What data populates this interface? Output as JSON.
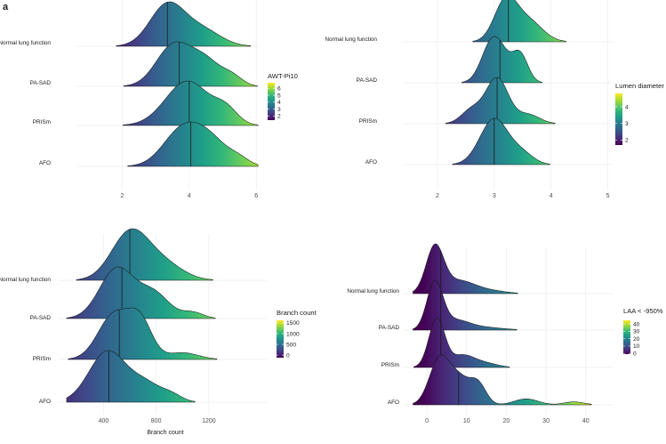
{
  "panel_label": "a",
  "palette": [
    "#440154",
    "#482878",
    "#3e4a89",
    "#31688e",
    "#26828e",
    "#1f9e89",
    "#35b779",
    "#6ece58",
    "#b5de2b",
    "#fde725"
  ],
  "chart_data": [
    {
      "type": "ridgeline",
      "id": "awt",
      "legend_title": "AWT-Pi10",
      "legend_range": [
        1.4,
        6.8
      ],
      "legend_ticks": [
        6,
        5,
        4,
        3,
        2
      ],
      "xlabel": "",
      "xlim": [
        0.8,
        6.1
      ],
      "xticks": [
        2,
        4,
        6
      ],
      "support": [
        1.2,
        6.05
      ],
      "categories": [
        {
          "name": "Normal lung function",
          "median": 3.35,
          "spread": 1.6,
          "peaks": [
            {
              "x": 3.35,
              "h": 1.0,
              "w": 0.52
            },
            {
              "x": 4.4,
              "h": 0.38,
              "w": 0.55
            }
          ]
        },
        {
          "name": "PA-SAD",
          "median": 3.7,
          "spread": 1.6,
          "peaks": [
            {
              "x": 3.5,
              "h": 0.92,
              "w": 0.5
            },
            {
              "x": 4.45,
              "h": 0.62,
              "w": 0.5
            },
            {
              "x": 5.3,
              "h": 0.18,
              "w": 0.3
            }
          ]
        },
        {
          "name": "PRISm",
          "median": 4.0,
          "spread": 1.6,
          "peaks": [
            {
              "x": 3.95,
              "h": 0.98,
              "w": 0.65
            },
            {
              "x": 5.1,
              "h": 0.3,
              "w": 0.35
            }
          ]
        },
        {
          "name": "AFO",
          "median": 4.05,
          "spread": 1.6,
          "peaks": [
            {
              "x": 3.75,
              "h": 0.92,
              "w": 0.55
            },
            {
              "x": 4.6,
              "h": 0.72,
              "w": 0.55
            },
            {
              "x": 5.5,
              "h": 0.15,
              "w": 0.3
            }
          ]
        }
      ]
    },
    {
      "type": "ridgeline",
      "id": "lumen",
      "legend_title": "Lumen diameter",
      "legend_range": [
        1.7,
        4.8
      ],
      "legend_ticks": [
        4,
        3,
        2
      ],
      "xlabel": "",
      "xlim": [
        1.5,
        5.1
      ],
      "xticks": [
        2,
        3,
        4,
        5
      ],
      "support": [
        2.1,
        4.3
      ],
      "categories": [
        {
          "name": "Normal lung function",
          "median": 3.25,
          "spread": 1.6,
          "peaks": [
            {
              "x": 3.2,
              "h": 1.0,
              "w": 0.2
            },
            {
              "x": 3.6,
              "h": 0.52,
              "w": 0.25
            }
          ]
        },
        {
          "name": "PA-SAD",
          "median": 3.1,
          "spread": 1.6,
          "peaks": [
            {
              "x": 2.95,
              "h": 0.9,
              "w": 0.18
            },
            {
              "x": 3.45,
              "h": 0.68,
              "w": 0.14
            },
            {
              "x": 3.15,
              "h": 0.35,
              "w": 0.15
            }
          ]
        },
        {
          "name": "PRISm",
          "median": 3.05,
          "spread": 1.6,
          "peaks": [
            {
              "x": 3.05,
              "h": 1.0,
              "w": 0.2
            },
            {
              "x": 2.6,
              "h": 0.3,
              "w": 0.18
            },
            {
              "x": 3.6,
              "h": 0.2,
              "w": 0.2
            }
          ]
        },
        {
          "name": "AFO",
          "median": 3.0,
          "spread": 1.6,
          "peaks": [
            {
              "x": 3.0,
              "h": 1.0,
              "w": 0.25
            },
            {
              "x": 3.5,
              "h": 0.22,
              "w": 0.2
            }
          ]
        }
      ]
    },
    {
      "type": "ridgeline",
      "id": "branch",
      "legend_title": "Branch count",
      "legend_range": [
        -120,
        1620
      ],
      "legend_ticks": [
        1500,
        1000,
        500,
        0
      ],
      "xlabel": "Branch count",
      "xlim": [
        100,
        1640
      ],
      "xticks": [
        400,
        800,
        1200
      ],
      "support": [
        120,
        1600
      ],
      "categories": [
        {
          "name": "Normal lung function",
          "median": 600,
          "spread": 1.6,
          "peaks": [
            {
              "x": 600,
              "h": 1.0,
              "w": 140
            },
            {
              "x": 850,
              "h": 0.35,
              "w": 150
            }
          ]
        },
        {
          "name": "PA-SAD",
          "median": 540,
          "spread": 1.6,
          "peaks": [
            {
              "x": 500,
              "h": 1.0,
              "w": 130
            },
            {
              "x": 780,
              "h": 0.5,
              "w": 120
            },
            {
              "x": 1080,
              "h": 0.12,
              "w": 80
            }
          ]
        },
        {
          "name": "PRISm",
          "median": 520,
          "spread": 1.6,
          "peaks": [
            {
              "x": 480,
              "h": 1.0,
              "w": 120
            },
            {
              "x": 680,
              "h": 0.8,
              "w": 90
            },
            {
              "x": 1000,
              "h": 0.15,
              "w": 120
            }
          ]
        },
        {
          "name": "AFO",
          "median": 440,
          "spread": 1.6,
          "peaks": [
            {
              "x": 430,
              "h": 1.0,
              "w": 140
            },
            {
              "x": 720,
              "h": 0.35,
              "w": 120
            },
            {
              "x": 920,
              "h": 0.12,
              "w": 80
            }
          ]
        }
      ]
    },
    {
      "type": "ridgeline",
      "id": "laa",
      "legend_title": "LAA < -950%",
      "legend_range": [
        -1,
        45
      ],
      "legend_ticks": [
        40,
        30,
        20,
        10,
        0
      ],
      "xlabel": "",
      "xlim": [
        -4.5,
        47
      ],
      "xticks": [
        0,
        10,
        20,
        30,
        40
      ],
      "support": [
        -3.5,
        45.5
      ],
      "categories": [
        {
          "name": "Normal lung function",
          "median": 3.5,
          "spread": 1.6,
          "peaks": [
            {
              "x": 2.0,
              "h": 1.0,
              "w": 2.2
            },
            {
              "x": 8.0,
              "h": 0.28,
              "w": 4.0
            },
            {
              "x": 16,
              "h": 0.06,
              "w": 4.0
            }
          ]
        },
        {
          "name": "PA-SAD",
          "median": 3.5,
          "spread": 1.3,
          "peaks": [
            {
              "x": 2.0,
              "h": 1.0,
              "w": 2.0
            },
            {
              "x": 7.0,
              "h": 0.2,
              "w": 3.5
            },
            {
              "x": 14,
              "h": 0.06,
              "w": 5.0
            }
          ]
        },
        {
          "name": "PRISm",
          "median": 3.5,
          "spread": 1.3,
          "peaks": [
            {
              "x": 2.5,
              "h": 1.0,
              "w": 2.0
            },
            {
              "x": 9.0,
              "h": 0.25,
              "w": 3.0
            },
            {
              "x": 15,
              "h": 0.08,
              "w": 3.0
            }
          ]
        },
        {
          "name": "AFO",
          "median": 8.0,
          "spread": 1.3,
          "peaks": [
            {
              "x": 3.0,
              "h": 0.7,
              "w": 2.5
            },
            {
              "x": 8.0,
              "h": 0.45,
              "w": 3.0
            },
            {
              "x": 13,
              "h": 0.3,
              "w": 2.0
            },
            {
              "x": 25,
              "h": 0.1,
              "w": 3.0
            },
            {
              "x": 37,
              "h": 0.05,
              "w": 2.5
            }
          ]
        }
      ]
    }
  ]
}
